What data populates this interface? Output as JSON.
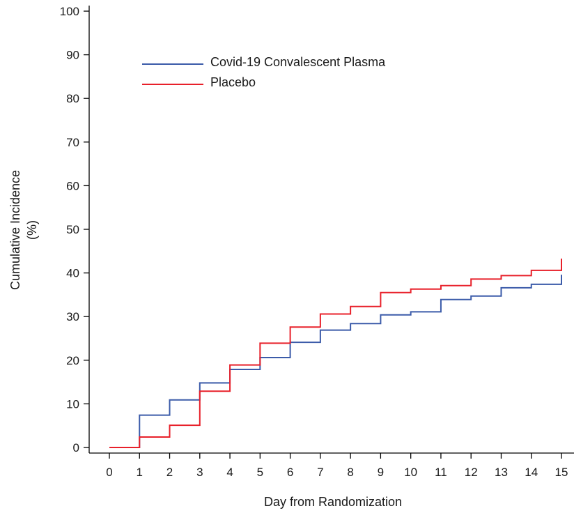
{
  "chart_data": {
    "type": "line",
    "step": true,
    "title": "",
    "xlabel": "Day from Randomization",
    "ylabel": "Cumulative Incidence",
    "ylabel_unit": "(%)",
    "xlim": [
      0,
      15
    ],
    "ylim": [
      0,
      100
    ],
    "x_ticks": [
      0,
      1,
      2,
      3,
      4,
      5,
      6,
      7,
      8,
      9,
      10,
      11,
      12,
      13,
      14,
      15
    ],
    "y_ticks": [
      0,
      10,
      20,
      30,
      40,
      50,
      60,
      70,
      80,
      90,
      100
    ],
    "grid": false,
    "legend_position": "top-left",
    "series": [
      {
        "name": "Covid-19 Convalescent Plasma",
        "color": "#3b5ba9",
        "x": [
          0,
          1,
          2,
          3,
          4,
          5,
          6,
          7,
          8,
          9,
          10,
          11,
          12,
          13,
          14,
          15
        ],
        "values": [
          0,
          7.4,
          10.9,
          14.8,
          17.9,
          20.6,
          24.1,
          26.9,
          28.4,
          30.4,
          31.1,
          33.9,
          34.7,
          36.6,
          37.4,
          39.6
        ]
      },
      {
        "name": "Placebo",
        "color": "#e8202a",
        "x": [
          0,
          1,
          2,
          3,
          4,
          5,
          6,
          7,
          8,
          9,
          10,
          11,
          12,
          13,
          14,
          15
        ],
        "values": [
          0,
          2.4,
          5.1,
          12.9,
          18.9,
          23.9,
          27.6,
          30.6,
          32.3,
          35.5,
          36.3,
          37.1,
          38.6,
          39.4,
          40.6,
          43.3
        ]
      }
    ]
  }
}
